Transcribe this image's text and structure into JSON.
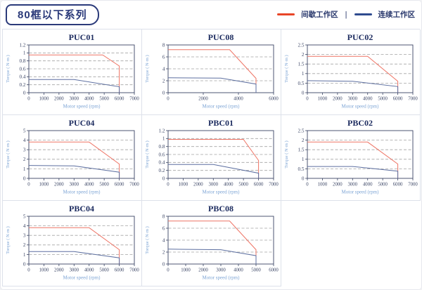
{
  "header": {
    "title": "80框以下系列",
    "legend": {
      "intermittent_label": "间歇工作区",
      "separator": "|",
      "continuous_label": "连续工作区",
      "intermittent_color": "#e84527",
      "continuous_color": "#2f4b8f"
    }
  },
  "chart_style": {
    "line_red": "#ee7465",
    "line_blue": "#5d6fa0",
    "grid_color": "#a3a3a3",
    "axis_color": "#3a4464",
    "tick_label_color": "#3a4464",
    "axis_title_color": "#7ba3d4",
    "title_color": "#1b2a5e"
  },
  "chart_data": [
    {
      "type": "line",
      "name": "PUC01",
      "xlabel": "Motor speed (rpm)",
      "ylabel": "Torque ( N·m )",
      "xlim": [
        0,
        7000
      ],
      "ylim": [
        0,
        1.2
      ],
      "xticks": [
        0,
        1000,
        2000,
        3000,
        4000,
        5000,
        6000,
        7000
      ],
      "yticks": [
        0,
        0.2,
        0.4,
        0.6,
        0.8,
        1,
        1.2
      ],
      "grid": "dashed-horizontal",
      "legend_position": "none",
      "series": [
        {
          "name": "间歇工作区",
          "color": "red",
          "points": [
            [
              0,
              0.95
            ],
            [
              4900,
              0.95
            ],
            [
              6000,
              0.67
            ],
            [
              6000,
              0
            ]
          ]
        },
        {
          "name": "连续工作区",
          "color": "blue",
          "points": [
            [
              0,
              0.33
            ],
            [
              3000,
              0.33
            ],
            [
              6000,
              0.15
            ],
            [
              6000,
              0
            ]
          ]
        }
      ]
    },
    {
      "type": "line",
      "name": "PUC08",
      "xlabel": "Motor speed (rpm)",
      "ylabel": "Torque ( N·m )",
      "xlim": [
        0,
        6000
      ],
      "ylim": [
        0,
        8
      ],
      "xticks": [
        0,
        2000,
        4000,
        6000
      ],
      "yticks": [
        0,
        2,
        4,
        6,
        8
      ],
      "grid": "dashed-horizontal",
      "legend_position": "none",
      "series": [
        {
          "name": "间歇工作区",
          "color": "red",
          "points": [
            [
              0,
              7.2
            ],
            [
              3500,
              7.2
            ],
            [
              5000,
              2.4
            ],
            [
              5000,
              0
            ]
          ]
        },
        {
          "name": "连续工作区",
          "color": "blue",
          "points": [
            [
              0,
              2.5
            ],
            [
              3000,
              2.45
            ],
            [
              5000,
              1.45
            ],
            [
              5000,
              0
            ]
          ]
        }
      ]
    },
    {
      "type": "line",
      "name": "PUC02",
      "xlabel": "Motor speed (rpm)",
      "ylabel": "Torque ( N·m )",
      "xlim": [
        0,
        7000
      ],
      "ylim": [
        0,
        2.5
      ],
      "xticks": [
        0,
        1000,
        2000,
        3000,
        4000,
        5000,
        6000,
        7000
      ],
      "yticks": [
        0,
        0.5,
        1,
        1.5,
        2,
        2.5
      ],
      "grid": "dashed-horizontal",
      "legend_position": "none",
      "series": [
        {
          "name": "间歇工作区",
          "color": "red",
          "points": [
            [
              0,
              1.9
            ],
            [
              4000,
              1.9
            ],
            [
              6000,
              0.6
            ],
            [
              6000,
              0
            ]
          ]
        },
        {
          "name": "连续工作区",
          "color": "blue",
          "points": [
            [
              0,
              0.63
            ],
            [
              3000,
              0.6
            ],
            [
              6000,
              0.32
            ],
            [
              6000,
              0
            ]
          ]
        }
      ]
    },
    {
      "type": "line",
      "name": "PUC04",
      "xlabel": "Motor speed (rpm)",
      "ylabel": "Torque ( N·m )",
      "xlim": [
        0,
        7000
      ],
      "ylim": [
        0,
        5
      ],
      "xticks": [
        0,
        1000,
        2000,
        3000,
        4000,
        5000,
        6000,
        7000
      ],
      "yticks": [
        0,
        1,
        2,
        3,
        4,
        5
      ],
      "grid": "dashed-horizontal",
      "legend_position": "none",
      "series": [
        {
          "name": "间歇工作区",
          "color": "red",
          "points": [
            [
              0,
              3.8
            ],
            [
              4000,
              3.8
            ],
            [
              6000,
              1.5
            ],
            [
              6000,
              0
            ]
          ]
        },
        {
          "name": "连续工作区",
          "color": "blue",
          "points": [
            [
              0,
              1.35
            ],
            [
              3000,
              1.3
            ],
            [
              6000,
              0.65
            ],
            [
              6000,
              0
            ]
          ]
        }
      ]
    },
    {
      "type": "line",
      "name": "PBC01",
      "xlabel": "Motor speed (rpm)",
      "ylabel": "Torque ( N·m )",
      "xlim": [
        0,
        7000
      ],
      "ylim": [
        0,
        1.2
      ],
      "xticks": [
        0,
        1000,
        2000,
        3000,
        4000,
        5000,
        6000,
        7000
      ],
      "yticks": [
        0,
        0.2,
        0.4,
        0.6,
        0.8,
        1,
        1.2
      ],
      "grid": "dashed-horizontal",
      "legend_position": "none",
      "series": [
        {
          "name": "间歇工作区",
          "color": "red",
          "points": [
            [
              0,
              0.98
            ],
            [
              5000,
              0.98
            ],
            [
              6000,
              0.45
            ],
            [
              6000,
              0
            ]
          ]
        },
        {
          "name": "连续工作区",
          "color": "blue",
          "points": [
            [
              0,
              0.35
            ],
            [
              3000,
              0.35
            ],
            [
              6000,
              0.13
            ],
            [
              6000,
              0
            ]
          ]
        }
      ]
    },
    {
      "type": "line",
      "name": "PBC02",
      "xlabel": "Motor speed (rpm)",
      "ylabel": "Torque ( N·m )",
      "xlim": [
        0,
        7000
      ],
      "ylim": [
        0,
        2.5
      ],
      "xticks": [
        0,
        1000,
        2000,
        3000,
        4000,
        5000,
        6000,
        7000
      ],
      "yticks": [
        0,
        0.5,
        1,
        1.5,
        2,
        2.5
      ],
      "grid": "dashed-horizontal",
      "legend_position": "none",
      "series": [
        {
          "name": "间歇工作区",
          "color": "red",
          "points": [
            [
              0,
              1.9
            ],
            [
              4000,
              1.9
            ],
            [
              6000,
              0.75
            ],
            [
              6000,
              0
            ]
          ]
        },
        {
          "name": "连续工作区",
          "color": "blue",
          "points": [
            [
              0,
              0.62
            ],
            [
              3000,
              0.62
            ],
            [
              6000,
              0.38
            ],
            [
              6000,
              0
            ]
          ]
        }
      ]
    },
    {
      "type": "line",
      "name": "PBC04",
      "xlabel": "Motor speed (rpm)",
      "ylabel": "Torque ( N·m )",
      "xlim": [
        0,
        7000
      ],
      "ylim": [
        0,
        5
      ],
      "xticks": [
        0,
        1000,
        2000,
        3000,
        4000,
        5000,
        6000,
        7000
      ],
      "yticks": [
        0,
        1,
        2,
        3,
        4,
        5
      ],
      "grid": "dashed-horizontal",
      "legend_position": "none",
      "series": [
        {
          "name": "间歇工作区",
          "color": "red",
          "points": [
            [
              0,
              3.8
            ],
            [
              4000,
              3.8
            ],
            [
              6000,
              1.5
            ],
            [
              6000,
              0
            ]
          ]
        },
        {
          "name": "连续工作区",
          "color": "blue",
          "points": [
            [
              0,
              1.3
            ],
            [
              3000,
              1.3
            ],
            [
              6000,
              0.65
            ],
            [
              6000,
              0
            ]
          ]
        }
      ]
    },
    {
      "type": "line",
      "name": "PBC08",
      "xlabel": "Motor speed (rpm)",
      "ylabel": "Torque ( N·m )",
      "xlim": [
        0,
        6000
      ],
      "ylim": [
        0,
        8
      ],
      "xticks": [
        0,
        1000,
        2000,
        3000,
        4000,
        5000,
        6000
      ],
      "yticks": [
        0,
        2,
        4,
        6,
        8
      ],
      "grid": "dashed-horizontal",
      "legend_position": "none",
      "series": [
        {
          "name": "间歇工作区",
          "color": "red",
          "points": [
            [
              0,
              7.2
            ],
            [
              3500,
              7.2
            ],
            [
              5000,
              2.4
            ],
            [
              5000,
              0
            ]
          ]
        },
        {
          "name": "连续工作区",
          "color": "blue",
          "points": [
            [
              0,
              2.5
            ],
            [
              3000,
              2.4
            ],
            [
              5000,
              1.4
            ],
            [
              5000,
              0
            ]
          ]
        }
      ]
    }
  ]
}
